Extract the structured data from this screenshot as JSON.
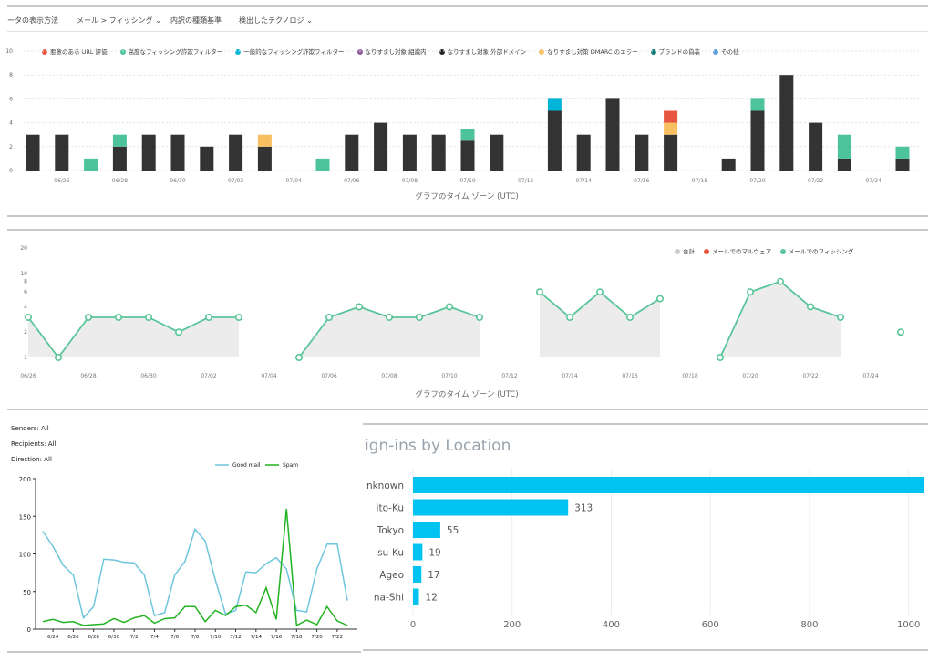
{
  "toolbar": {
    "view_label": "ータの表示方法",
    "view_value": "メール > フィッシング",
    "top_label": "内訳の種類基準",
    "top_value": "検出したテクノロジ"
  },
  "colors": {
    "dark": "#333333",
    "teal": "#4dc39c",
    "cyan": "#00b5d8",
    "red": "#e8553f",
    "orange": "#f8c060",
    "line_green": "#5ac59a",
    "light_blue": "#6ec6dc",
    "green": "#22b322",
    "bar_blue": "#00c3f2"
  },
  "chart_data": [
    {
      "type": "bar",
      "stacked": true,
      "legend": [
        {
          "label": "悪意のある URL 評価",
          "color": "#e8553f"
        },
        {
          "label": "高度なフィッシング詐欺フィルター",
          "color": "#4dc39c"
        },
        {
          "label": "一般的なフィッシング詐欺フィルター",
          "color": "#00b5d8"
        },
        {
          "label": "なりすまし対象 組織内",
          "color": "#8e5c9c"
        },
        {
          "label": "なりすまし対象 外部ドメイン",
          "color": "#222222"
        },
        {
          "label": "なりすまし対策 DMARC のエラー",
          "color": "#f8c060"
        },
        {
          "label": "ブランドの偽装",
          "color": "#0f7a7a"
        },
        {
          "label": "その他",
          "color": "#5aa0e0"
        }
      ],
      "y_ticks": [
        "0",
        "2",
        "4",
        "6",
        "8",
        "10"
      ],
      "x_ticks": [
        "06/26",
        "06/28",
        "06/30",
        "07/02",
        "07/04",
        "07/06",
        "07/08",
        "07/10",
        "07/12",
        "07/14",
        "07/16",
        "07/18",
        "07/20",
        "07/22",
        "07/24"
      ],
      "xlabel": "グラフのタイム ゾーン (UTC)",
      "ylim": [
        0,
        10
      ],
      "x": [
        0,
        1,
        2,
        3,
        4,
        5,
        6,
        7,
        8,
        9,
        10,
        11,
        12,
        13,
        14,
        15,
        16,
        17,
        18,
        19,
        20,
        21,
        22,
        23,
        24,
        25,
        26,
        27,
        28,
        29,
        30
      ],
      "series": [
        {
          "name": "なりすまし対象 外部ドメイン",
          "color": "#333333",
          "values": [
            3,
            3,
            0,
            2,
            3,
            3,
            2,
            3,
            2,
            0,
            0,
            3,
            4,
            3,
            3,
            2.5,
            3,
            0,
            5,
            3,
            6,
            3,
            3,
            0,
            1,
            5,
            8,
            4,
            1,
            0,
            1
          ]
        },
        {
          "name": "なりすまし対策 DMARC のエラー",
          "color": "#f8c060",
          "values": [
            0,
            0,
            0,
            0,
            0,
            0,
            0,
            0,
            1,
            0,
            0,
            0,
            0,
            0,
            0,
            0,
            0,
            0,
            0,
            0,
            0,
            0,
            1,
            0,
            0,
            0,
            0,
            0,
            0,
            0,
            0
          ]
        },
        {
          "name": "高度なフィッシング詐欺フィルター",
          "color": "#4dc39c",
          "values": [
            0,
            0,
            1,
            1,
            0,
            0,
            0,
            0,
            0,
            0,
            1,
            0,
            0,
            0,
            0,
            1,
            0,
            0,
            0,
            0,
            0,
            0,
            0,
            0,
            0,
            1,
            0,
            0,
            2,
            0,
            1
          ]
        },
        {
          "name": "一般的なフィッシング詐欺フィルター",
          "color": "#00b5d8",
          "values": [
            0,
            0,
            0,
            0,
            0,
            0,
            0,
            0,
            0,
            0,
            0,
            0,
            0,
            0,
            0,
            0,
            0,
            0,
            1,
            0,
            0,
            0,
            0,
            0,
            0,
            0,
            0,
            0,
            0,
            0,
            0
          ]
        },
        {
          "name": "悪意のある URL 評価",
          "color": "#e8553f",
          "values": [
            0,
            0,
            0,
            0,
            0,
            0,
            0,
            0,
            0,
            0,
            0,
            0,
            0,
            0,
            0,
            0,
            0,
            0,
            0,
            0,
            0,
            0,
            1,
            0,
            0,
            0,
            0,
            0,
            0,
            0,
            0
          ]
        }
      ]
    },
    {
      "type": "line",
      "legend": [
        {
          "label": "合計",
          "color": "#cccccc"
        },
        {
          "label": "メールでのマルウェア",
          "color": "#e8553f"
        },
        {
          "label": "メールでのフィッシング",
          "color": "#5ac59a"
        }
      ],
      "y_ticks": [
        "1",
        "2",
        "4",
        "6",
        "8",
        "10",
        "20"
      ],
      "y_tick_values": [
        1,
        2,
        4,
        6,
        8,
        10,
        20
      ],
      "x_ticks": [
        "06/26",
        "06/28",
        "06/30",
        "07/02",
        "07/04",
        "07/06",
        "07/08",
        "07/10",
        "07/12",
        "07/14",
        "07/16",
        "07/18",
        "07/20",
        "07/22",
        "07/24"
      ],
      "xlabel": "グラフのタイム ゾーン (UTC)",
      "yscale": "log",
      "segments": [
        {
          "x": [
            0,
            1,
            2,
            3,
            4,
            5,
            6,
            7
          ],
          "y": [
            3,
            1,
            3,
            3,
            3,
            2,
            3,
            3
          ]
        },
        {
          "x": [
            9,
            10,
            11,
            12,
            13,
            14,
            15
          ],
          "y": [
            1,
            3,
            4,
            3,
            3,
            4,
            3
          ]
        },
        {
          "x": [
            17,
            18,
            19,
            20,
            21
          ],
          "y": [
            6,
            3,
            6,
            3,
            5
          ]
        },
        {
          "x": [
            23,
            24,
            25,
            26,
            27
          ],
          "y": [
            1,
            6,
            8,
            4,
            3
          ]
        },
        {
          "x": [
            29
          ],
          "y": [
            2
          ]
        }
      ]
    },
    {
      "type": "line",
      "legend": [
        {
          "label": "Good mail",
          "color": "#6ec6dc"
        },
        {
          "label": "Spam",
          "color": "#22b322"
        }
      ],
      "ylim": [
        0,
        200
      ],
      "y_ticks": [
        "0",
        "50",
        "100",
        "150",
        "200"
      ],
      "x_ticks": [
        "6/24",
        "6/26",
        "6/28",
        "6/30",
        "7/2",
        "7/4",
        "7/6",
        "7/8",
        "7/10",
        "7/12",
        "7/14",
        "7/16",
        "7/18",
        "7/20",
        "7/22"
      ],
      "series": [
        {
          "name": "Good mail",
          "color": "#6ec6dc",
          "values": [
            130,
            110,
            85,
            72,
            15,
            30,
            93,
            92,
            89,
            88,
            72,
            18,
            22,
            72,
            90,
            133,
            117,
            65,
            20,
            25,
            76,
            75,
            87,
            95,
            80,
            25,
            23,
            80,
            113,
            113,
            38
          ]
        },
        {
          "name": "Spam",
          "color": "#22b322",
          "values": [
            10,
            13,
            9,
            10,
            5,
            6,
            7,
            14,
            9,
            15,
            18,
            8,
            14,
            15,
            30,
            30,
            10,
            25,
            18,
            30,
            32,
            22,
            55,
            13,
            160,
            5,
            12,
            6,
            30,
            11,
            5
          ]
        }
      ]
    },
    {
      "type": "bar",
      "orientation": "horizontal",
      "title": "ign-ins by Location",
      "categories": [
        "nknown",
        "ito-Ku",
        "Tokyo",
        "su-Ku",
        "Ageo",
        "na-Shi"
      ],
      "values": [
        1030,
        313,
        55,
        19,
        17,
        12
      ],
      "value_labels": [
        "",
        "313",
        "55",
        "19",
        "17",
        "12"
      ],
      "xlim": [
        0,
        1030
      ],
      "x_ticks": [
        "0",
        "200",
        "400",
        "600",
        "800",
        "1000"
      ],
      "color": "#00c3f2"
    }
  ],
  "filters": {
    "senders": "Senders: All",
    "recipients": "Recipients: All",
    "direction": "Direction: All"
  }
}
